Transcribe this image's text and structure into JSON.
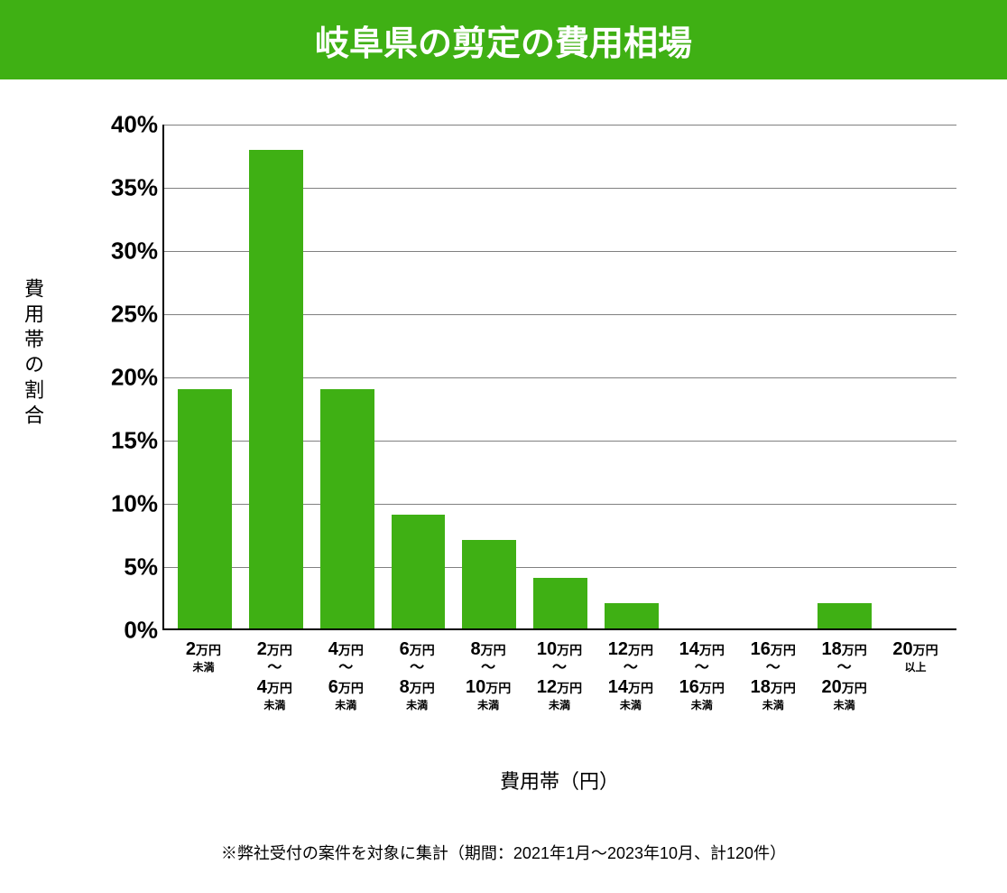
{
  "title": {
    "text": "岐阜県の剪定の費用相場",
    "background_color": "#3fb014",
    "text_color": "#ffffff",
    "fontsize": 38
  },
  "chart": {
    "type": "bar",
    "y_axis_label": "費用帯の割合",
    "y_axis_label_fontsize": 22,
    "x_axis_title": "費用帯（円）",
    "x_axis_title_fontsize": 22,
    "ylim_min": 0,
    "ylim_max": 40,
    "ytick_step": 5,
    "y_ticks": [
      {
        "value": 0,
        "label": "0%"
      },
      {
        "value": 5,
        "label": "5%"
      },
      {
        "value": 10,
        "label": "10%"
      },
      {
        "value": 15,
        "label": "15%"
      },
      {
        "value": 20,
        "label": "20%"
      },
      {
        "value": 25,
        "label": "25%"
      },
      {
        "value": 30,
        "label": "30%"
      },
      {
        "value": 35,
        "label": "35%"
      },
      {
        "value": 40,
        "label": "40%"
      }
    ],
    "y_tick_fontsize": 26,
    "bar_color": "#3fb014",
    "grid_color": "#808080",
    "background_color": "#ffffff",
    "bar_width_ratio": 0.76,
    "categories": [
      {
        "top_num": "2",
        "top_unit": "万円",
        "suffix": "未満",
        "bottom_num": "",
        "bottom_unit": "",
        "has_range": false
      },
      {
        "top_num": "2",
        "top_unit": "万円",
        "suffix": "未満",
        "bottom_num": "4",
        "bottom_unit": "万円",
        "has_range": true
      },
      {
        "top_num": "4",
        "top_unit": "万円",
        "suffix": "未満",
        "bottom_num": "6",
        "bottom_unit": "万円",
        "has_range": true
      },
      {
        "top_num": "6",
        "top_unit": "万円",
        "suffix": "未満",
        "bottom_num": "8",
        "bottom_unit": "万円",
        "has_range": true
      },
      {
        "top_num": "8",
        "top_unit": "万円",
        "suffix": "未満",
        "bottom_num": "10",
        "bottom_unit": "万円",
        "has_range": true
      },
      {
        "top_num": "10",
        "top_unit": "万円",
        "suffix": "未満",
        "bottom_num": "12",
        "bottom_unit": "万円",
        "has_range": true
      },
      {
        "top_num": "12",
        "top_unit": "万円",
        "suffix": "未満",
        "bottom_num": "14",
        "bottom_unit": "万円",
        "has_range": true
      },
      {
        "top_num": "14",
        "top_unit": "万円",
        "suffix": "未満",
        "bottom_num": "16",
        "bottom_unit": "万円",
        "has_range": true
      },
      {
        "top_num": "16",
        "top_unit": "万円",
        "suffix": "未満",
        "bottom_num": "18",
        "bottom_unit": "万円",
        "has_range": true
      },
      {
        "top_num": "18",
        "top_unit": "万円",
        "suffix": "未満",
        "bottom_num": "20",
        "bottom_unit": "万円",
        "has_range": true
      },
      {
        "top_num": "20",
        "top_unit": "万円",
        "suffix": "以上",
        "bottom_num": "",
        "bottom_unit": "",
        "has_range": false
      }
    ],
    "values": [
      19,
      38,
      19,
      9,
      7,
      4,
      2,
      0,
      0,
      2,
      0
    ]
  },
  "footnote": {
    "text": "※弊社受付の案件を対象に集計（期間：2021年1月～2023年10月、計120件）",
    "fontsize": 18,
    "color": "#000000"
  }
}
